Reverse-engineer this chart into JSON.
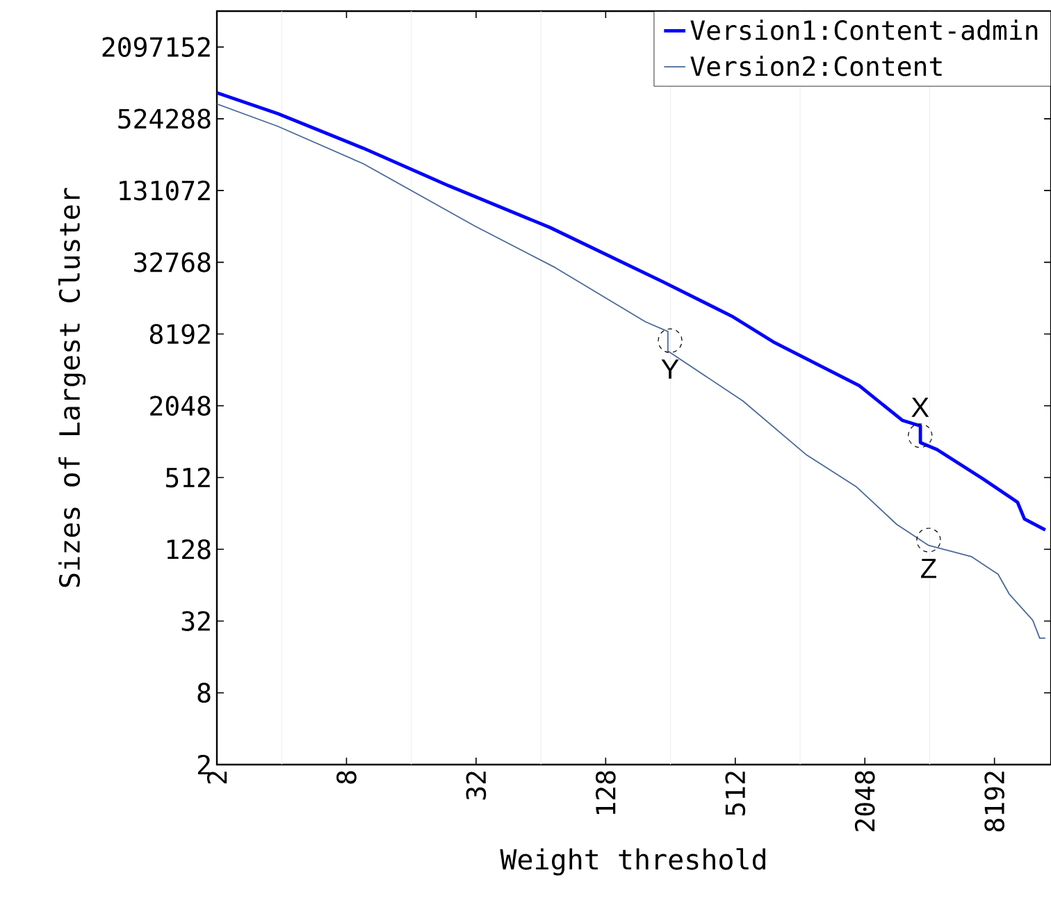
{
  "chart_data": {
    "type": "line",
    "xlabel": "Weight threshold",
    "ylabel": "Sizes of Largest Cluster",
    "log": "xy",
    "grid": "x",
    "legend": "top right",
    "marker": "none",
    "line_style": "solid",
    "xlim": [
      2,
      15000
    ],
    "ylim": [
      2,
      4194304
    ],
    "xticks": [
      2,
      8,
      32,
      128,
      512,
      2048,
      8192
    ],
    "yticks": [
      2,
      8,
      32,
      128,
      512,
      2048,
      8192,
      32768,
      131072,
      524288,
      2097152
    ],
    "series": [
      {
        "name": "Version1:Content-admin",
        "color": "#0000ff",
        "x": [
          2,
          3.84,
          9.57,
          23.9,
          70.5,
          235,
          493,
          780,
          1930,
          3057,
          3709,
          3709,
          4430,
          7230,
          10480,
          11290,
          14110
        ],
        "values": [
          865000,
          578000,
          297000,
          143500,
          64200,
          22550,
          11580,
          6940,
          3020,
          1546,
          1388,
          1006,
          880,
          501,
          318,
          230,
          186
        ]
      },
      {
        "name": "Version2:Content",
        "color": "#4a6a9a",
        "x": [
          2,
          3.84,
          9.57,
          31.6,
          74.8,
          196,
          249,
          249,
          555,
          1098,
          1874,
          2882,
          4053,
          6420,
          8520,
          9590,
          12340,
          13290,
          14110
        ],
        "values": [
          697000,
          453000,
          220000,
          66000,
          29500,
          10370,
          8600,
          5900,
          2250,
          792,
          427,
          207,
          138,
          111,
          79,
          54,
          32.5,
          23,
          23
        ]
      }
    ],
    "annotations": [
      {
        "text": "X",
        "x": 3700,
        "y": 1150
      },
      {
        "text": "Y",
        "x": 255,
        "y": 7200
      },
      {
        "text": "Z",
        "x": 4050,
        "y": 153
      }
    ]
  }
}
